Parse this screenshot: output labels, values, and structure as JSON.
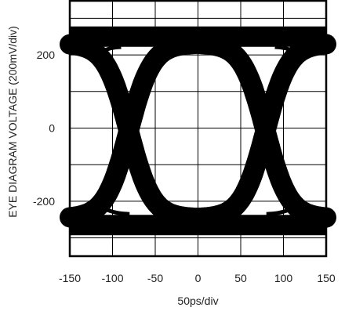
{
  "chart_data": {
    "type": "line",
    "title": "",
    "xlabel": "50ps/div",
    "ylabel": "EYE DIAGRAM VOLTAGE (200mV/div)",
    "x_unit": "ps",
    "y_unit": "mV",
    "xlim": [
      -150,
      150
    ],
    "ylim": [
      -350,
      350
    ],
    "x_ticks": [
      -150,
      -100,
      -50,
      0,
      50,
      100,
      150
    ],
    "x_tick_labels": [
      "-150",
      "-100",
      "-50",
      "0",
      "50",
      "100",
      "150"
    ],
    "y_ticks": [
      -200,
      0,
      200
    ],
    "y_tick_labels": [
      "-200",
      "0",
      "200"
    ],
    "grid": true,
    "colors": {
      "trace": "#000000",
      "grid": "#000000",
      "background": "#ffffff"
    },
    "eye": {
      "high_level_mv": 250,
      "low_level_mv": -265,
      "crossing_points_ps": [
        -81,
        79
      ],
      "crossing_level_mv": 0,
      "rail_thickness_mv": 28
    },
    "series": [
      {
        "x": [
          -150,
          -116,
          -81,
          -40,
          0,
          40,
          79,
          114,
          150
        ],
        "y": [
          -260,
          -170,
          0,
          190,
          235,
          190,
          0,
          -170,
          -255
        ]
      },
      {
        "x": [
          -150,
          -116,
          -81,
          -40,
          0,
          40,
          79,
          114,
          150
        ],
        "y": [
          235,
          160,
          0,
          -190,
          -240,
          -190,
          0,
          160,
          240
        ]
      }
    ]
  }
}
